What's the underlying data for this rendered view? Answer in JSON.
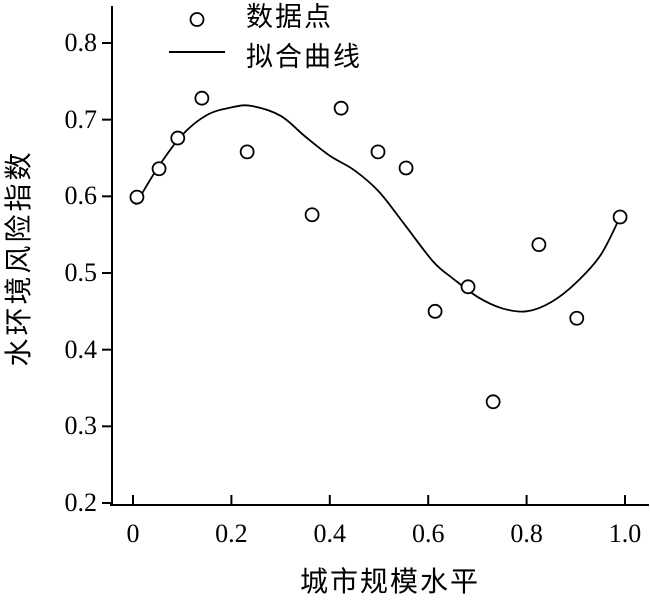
{
  "chart_data": {
    "type": "scatter",
    "title": "",
    "xlabel": "城市规模水平",
    "ylabel": "水环境风险指数",
    "xlim": [
      -0.04,
      1.05
    ],
    "ylim": [
      0.2,
      0.85
    ],
    "x_tick_values": [
      0,
      0.2,
      0.4,
      0.6,
      0.8,
      1.0
    ],
    "x_tick_labels": [
      "0",
      "0.2",
      "0.4",
      "0.6",
      "0.8",
      "1.0"
    ],
    "y_tick_values": [
      0.2,
      0.3,
      0.4,
      0.5,
      0.6,
      0.7,
      0.8
    ],
    "y_tick_labels": [
      "0.2",
      "0.3",
      "0.4",
      "0.5",
      "0.6",
      "0.7",
      "0.8"
    ],
    "grid": "off",
    "legend_position": "upper-left-inside",
    "legend": {
      "entries": [
        {
          "label": "数据点",
          "marker": "circle"
        },
        {
          "label": "拟合曲线",
          "marker": "line"
        }
      ]
    },
    "series": [
      {
        "name": "数据点",
        "type": "scatter",
        "points": [
          [
            0.008,
            0.599
          ],
          [
            0.053,
            0.636
          ],
          [
            0.091,
            0.676
          ],
          [
            0.14,
            0.728
          ],
          [
            0.232,
            0.658
          ],
          [
            0.364,
            0.576
          ],
          [
            0.423,
            0.715
          ],
          [
            0.498,
            0.658
          ],
          [
            0.555,
            0.637
          ],
          [
            0.614,
            0.45
          ],
          [
            0.681,
            0.482
          ],
          [
            0.732,
            0.332
          ],
          [
            0.825,
            0.537
          ],
          [
            0.902,
            0.441
          ],
          [
            0.99,
            0.573
          ]
        ]
      },
      {
        "name": "拟合曲线",
        "type": "line",
        "points": [
          [
            0.005,
            0.589
          ],
          [
            0.05,
            0.637
          ],
          [
            0.1,
            0.68
          ],
          [
            0.15,
            0.706
          ],
          [
            0.2,
            0.716
          ],
          [
            0.24,
            0.718
          ],
          [
            0.3,
            0.705
          ],
          [
            0.35,
            0.678
          ],
          [
            0.4,
            0.653
          ],
          [
            0.45,
            0.634
          ],
          [
            0.5,
            0.606
          ],
          [
            0.55,
            0.565
          ],
          [
            0.61,
            0.515
          ],
          [
            0.65,
            0.493
          ],
          [
            0.7,
            0.469
          ],
          [
            0.75,
            0.454
          ],
          [
            0.8,
            0.45
          ],
          [
            0.85,
            0.462
          ],
          [
            0.9,
            0.487
          ],
          [
            0.95,
            0.523
          ],
          [
            0.99,
            0.573
          ]
        ]
      }
    ],
    "colors": {
      "foreground": "#000000",
      "background": "#ffffff",
      "marker_fill": "#ffffff"
    }
  }
}
